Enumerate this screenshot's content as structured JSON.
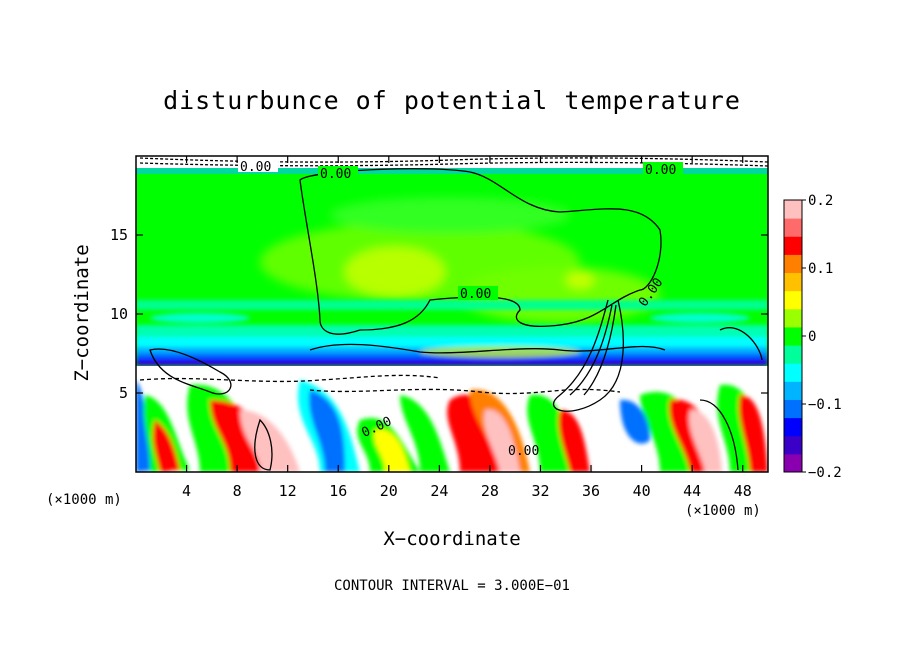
{
  "colors": {
    "palette": [
      "#8a00b0",
      "#3a00c8",
      "#0000ff",
      "#0070ff",
      "#00b4ff",
      "#00ffff",
      "#00ff9a",
      "#00ff00",
      "#9aff00",
      "#ffff00",
      "#ffc000",
      "#ff8000",
      "#ff0000",
      "#ff6a6a",
      "#ffc0c0"
    ],
    "background_field": "#00ff00",
    "contour_line": "#000000"
  },
  "chart_data": {
    "type": "heatmap",
    "title": "disturbunce of potential temperature",
    "xlabel": "X−coordinate",
    "ylabel": "Z−coordinate",
    "x_unit_label": "(×1000 m)",
    "xlim": [
      0,
      50
    ],
    "ylim": [
      0,
      20
    ],
    "x_ticks": [
      4,
      8,
      12,
      16,
      20,
      24,
      28,
      32,
      36,
      40,
      44,
      48
    ],
    "x_tick_labels": [
      "4",
      "8",
      "12",
      "16",
      "20",
      "24",
      "28",
      "32",
      "36",
      "40",
      "44",
      "48"
    ],
    "y_ticks": [
      5,
      10,
      15
    ],
    "y_tick_labels": [
      "5",
      "10",
      "15"
    ],
    "colorbar": {
      "min": -0.2,
      "max": 0.2,
      "ticks": [
        0.2,
        0.1,
        0,
        -0.1,
        -0.2
      ],
      "tick_labels": [
        "0.2",
        "0.1",
        "0",
        "−0.1",
        "−0.2"
      ]
    },
    "contour_labels": [
      "0.00",
      "0.00",
      "0.00",
      "0.00",
      "0.00",
      "0.00",
      "0.00"
    ],
    "contour_interval_text": "CONTOUR INTERVAL = 3.000E−01",
    "field_description": {
      "upper_layer": {
        "z_range": [
          7,
          19
        ],
        "value": 0.0
      },
      "warm_core": {
        "x_range": [
          15,
          33
        ],
        "z_range": [
          8,
          12
        ],
        "value": 0.05
      },
      "stable_band": {
        "z_range": [
          7,
          11
        ],
        "value": -0.06
      },
      "boundary_layer": {
        "z_range": [
          0,
          7
        ],
        "min": -0.2,
        "max": 0.2
      }
    }
  }
}
